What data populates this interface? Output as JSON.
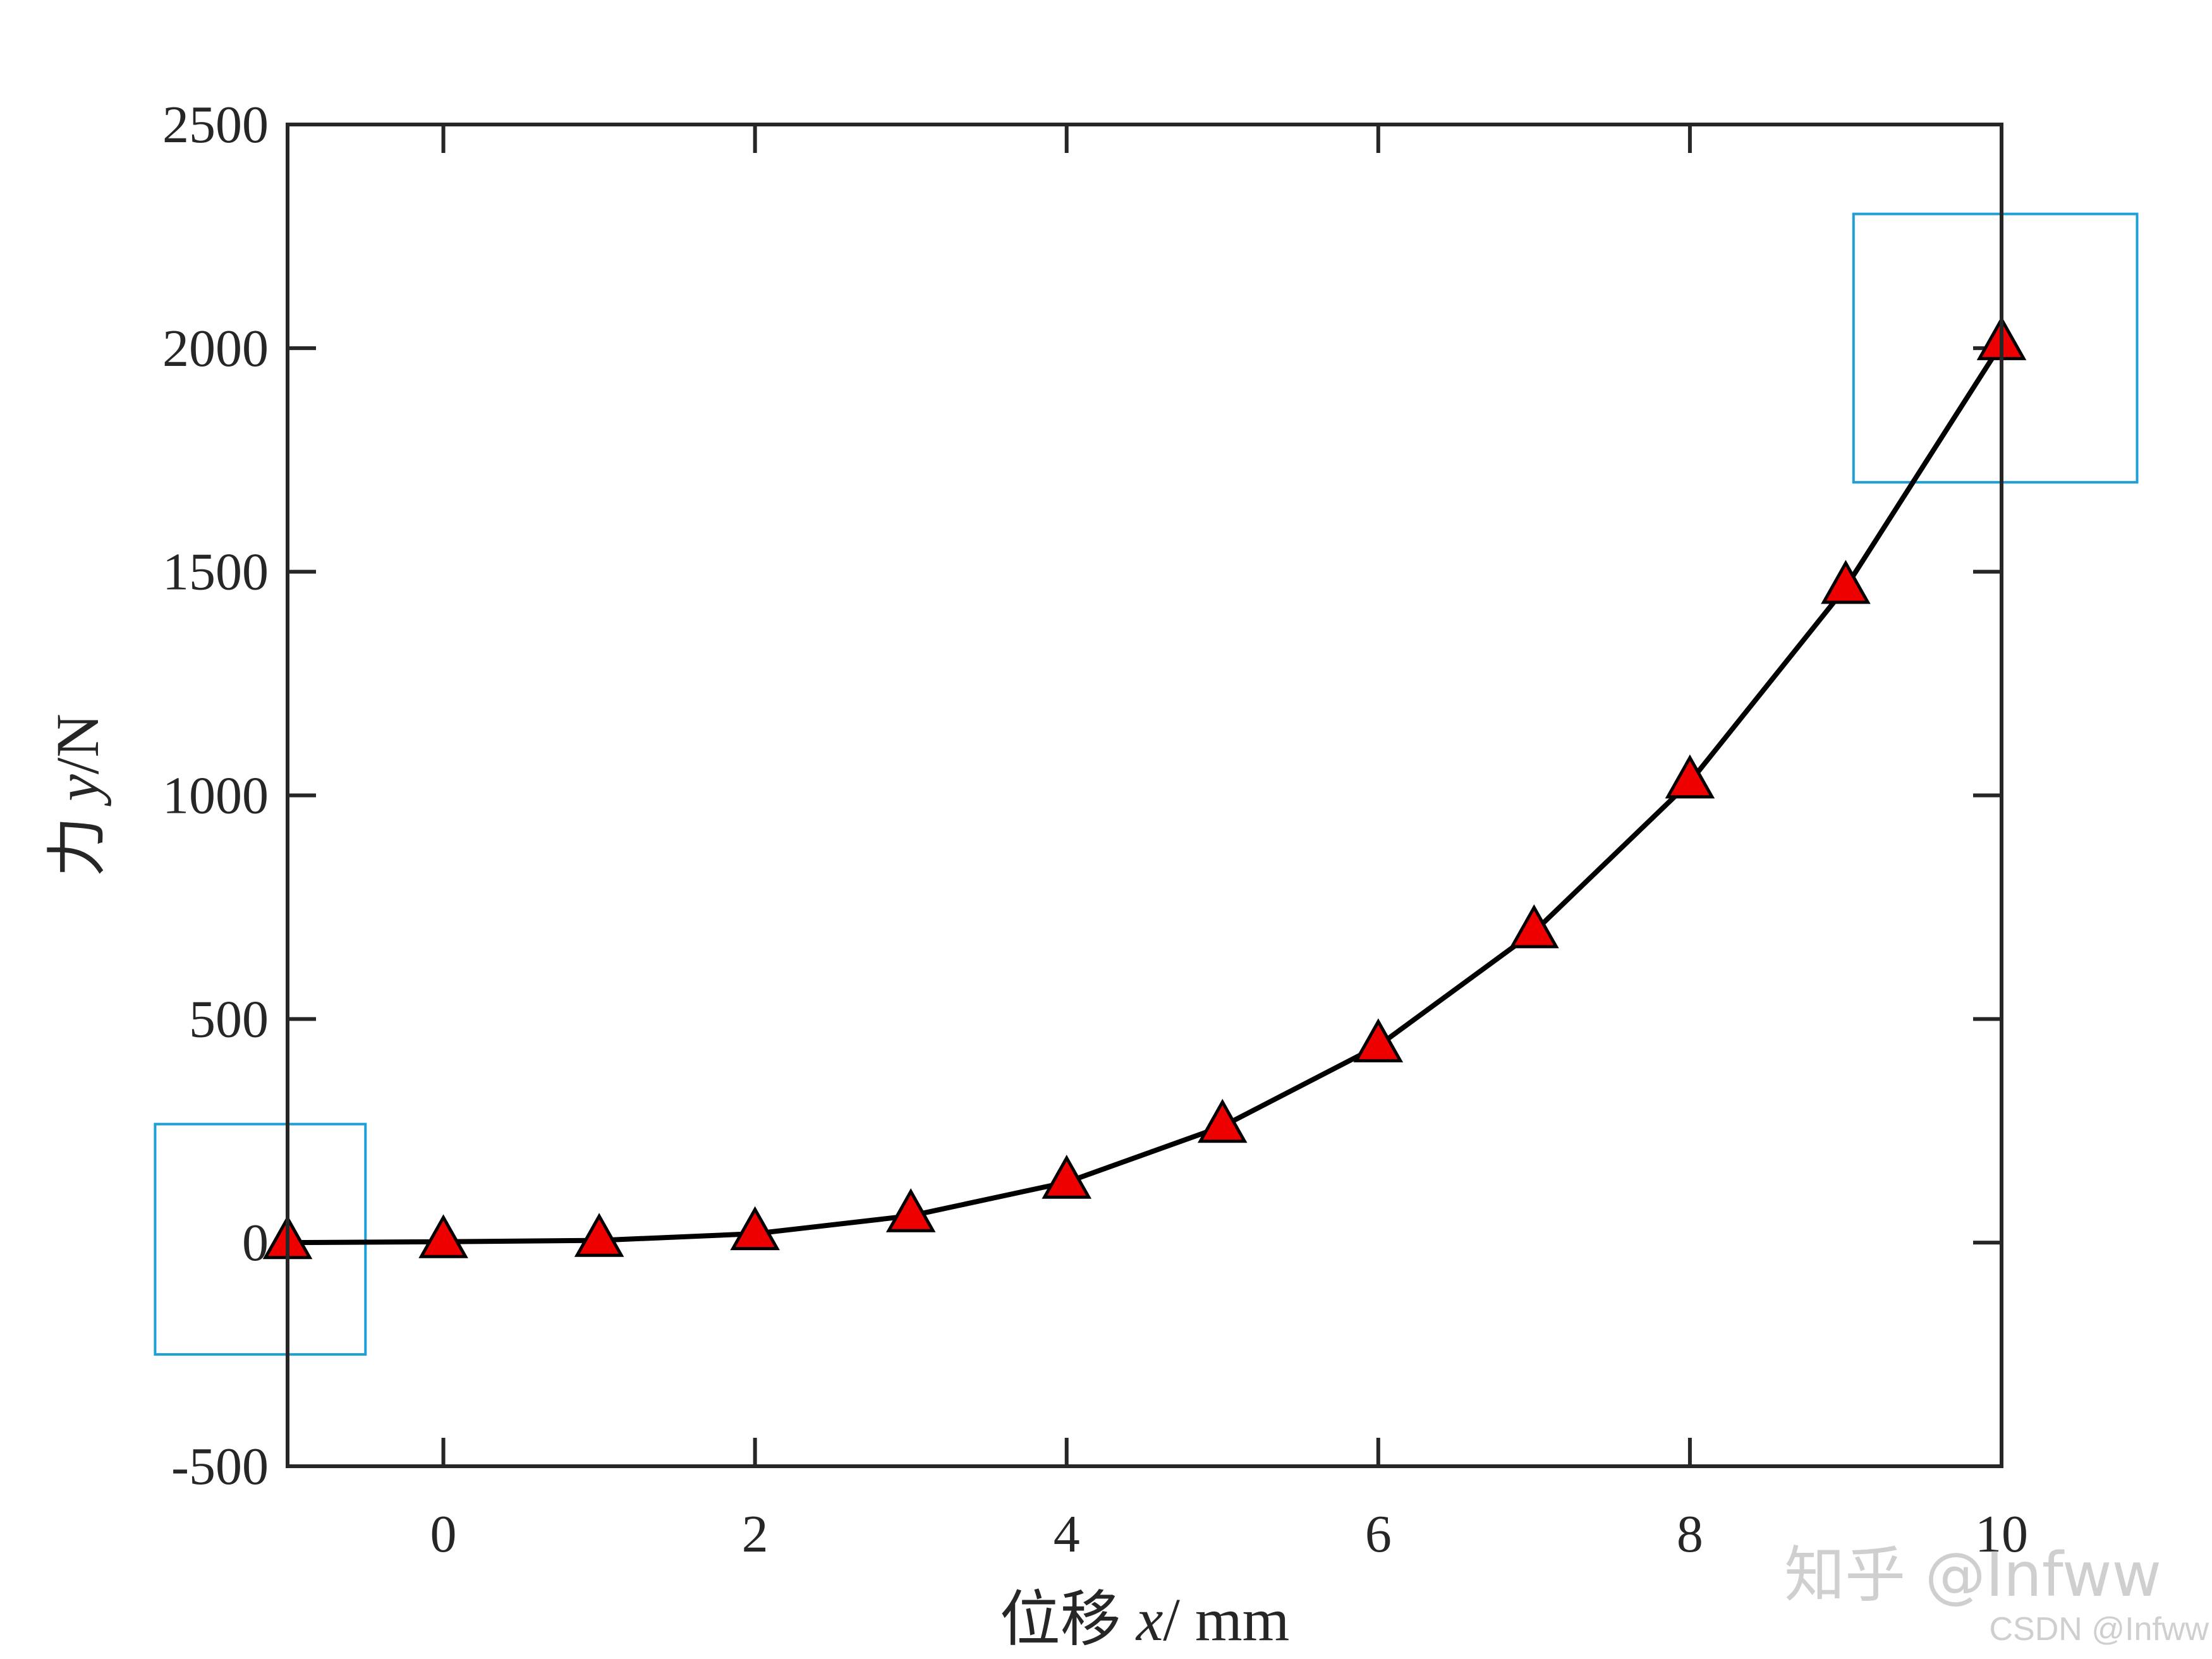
{
  "chart_data": {
    "type": "line",
    "xlabel": {
      "prefix": "位移 ",
      "var": "x",
      "suffix": "/ mm"
    },
    "ylabel": {
      "prefix": "力 ",
      "var": "y",
      "suffix": "/N"
    },
    "xlim": [
      -1,
      10
    ],
    "ylim": [
      -500,
      2500
    ],
    "xticks": [
      0,
      2,
      4,
      6,
      8,
      10
    ],
    "xtick_labels": [
      "0",
      "2",
      "4",
      "6",
      "8",
      "10"
    ],
    "yticks": [
      -500,
      0,
      500,
      1000,
      1500,
      2000,
      2500
    ],
    "ytick_labels": [
      "-500",
      "0",
      "500",
      "1000",
      "1500",
      "2000",
      "2500"
    ],
    "grid": false,
    "series": [
      {
        "x": [
          -1,
          0,
          1,
          2,
          3,
          4,
          5,
          6,
          7,
          8,
          9,
          10
        ],
        "y": [
          0,
          2,
          5,
          20,
          60,
          135,
          260,
          440,
          695,
          1030,
          1465,
          2010
        ],
        "line_color": "#000000",
        "marker": "triangle",
        "marker_fill": "#ee0000",
        "marker_edge": "#000000"
      }
    ],
    "annotations": [
      {
        "type": "rectangle",
        "color": "#1ea0d6",
        "x_range": [
          -1.85,
          -0.5
        ],
        "y_range": [
          -250,
          265
        ]
      },
      {
        "type": "rectangle",
        "color": "#1ea0d6",
        "x_range": [
          9.05,
          10.87
        ],
        "y_range": [
          1700,
          2300
        ]
      }
    ]
  },
  "watermark": {
    "main": "知乎 @Infww",
    "sub": "CSDN @Infww"
  }
}
